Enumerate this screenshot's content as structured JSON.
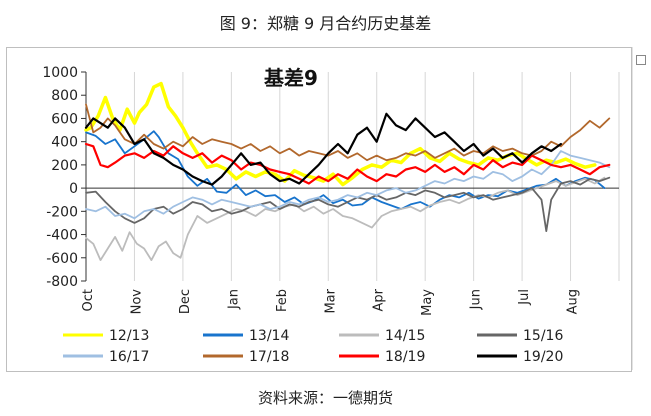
{
  "figure": {
    "title": "图 9：郑糖 9 月合约历史基差",
    "source": "资料来源：一德期货"
  },
  "chart_data": {
    "type": "line",
    "title": "基差9",
    "xlabel": "",
    "ylabel": "",
    "ylim": [
      -800,
      1000
    ],
    "yticks": [
      1000,
      800,
      600,
      400,
      200,
      0,
      -200,
      -400,
      -600,
      -800
    ],
    "x_tick_labels": [
      "Oct",
      "Nov",
      "Dec",
      "Jan",
      "Feb",
      "Mar",
      "Apr",
      "May",
      "Jun",
      "Jul",
      "Aug"
    ],
    "grid": "vertical",
    "legend_position": "bottom",
    "series": [
      {
        "name": "12/13",
        "color": "#ffff00",
        "width": 3.5,
        "x": [
          0,
          0.1,
          0.25,
          0.4,
          0.55,
          0.7,
          0.85,
          1.0,
          1.1,
          1.25,
          1.4,
          1.55,
          1.7,
          1.85,
          2.0,
          2.15,
          2.3,
          2.5,
          2.7,
          2.9,
          3.1,
          3.3,
          3.5,
          3.7,
          3.9,
          4.1,
          4.3,
          4.5,
          4.7,
          4.9,
          5.1,
          5.3,
          5.5,
          5.7,
          5.9,
          6.1,
          6.3,
          6.5,
          6.7,
          6.9,
          7.1,
          7.3,
          7.5,
          7.7,
          7.9,
          8.1,
          8.3,
          8.5,
          8.7,
          8.9,
          9.1,
          9.3,
          9.5,
          9.7,
          9.9,
          10.1,
          10.3,
          10.5
        ],
        "y": [
          500,
          520,
          620,
          780,
          600,
          500,
          680,
          560,
          650,
          720,
          870,
          900,
          700,
          620,
          520,
          400,
          300,
          180,
          200,
          160,
          80,
          140,
          100,
          140,
          120,
          60,
          150,
          110,
          90,
          60,
          120,
          30,
          90,
          160,
          200,
          180,
          240,
          220,
          300,
          340,
          260,
          230,
          300,
          250,
          220,
          200,
          260,
          240,
          280,
          300,
          250,
          200,
          240,
          220,
          250,
          210,
          180,
          200
        ]
      },
      {
        "name": "13/14",
        "color": "#1874cd",
        "width": 1.8,
        "x": [
          0,
          0.2,
          0.4,
          0.6,
          0.8,
          1.0,
          1.2,
          1.4,
          1.5,
          1.7,
          1.9,
          2.1,
          2.3,
          2.5,
          2.7,
          2.9,
          3.1,
          3.3,
          3.5,
          3.7,
          3.9,
          4.1,
          4.3,
          4.5,
          4.7,
          4.9,
          5.1,
          5.3,
          5.5,
          5.7,
          5.9,
          6.1,
          6.3,
          6.5,
          6.7,
          6.9,
          7.1,
          7.3,
          7.5,
          7.7,
          7.9,
          8.1,
          8.3,
          8.5,
          8.7,
          8.9,
          9.1,
          9.3,
          9.5,
          9.7,
          9.9,
          10.1,
          10.3,
          10.5,
          10.7
        ],
        "y": [
          480,
          450,
          380,
          420,
          300,
          360,
          420,
          490,
          440,
          300,
          250,
          100,
          20,
          80,
          -30,
          -40,
          30,
          -60,
          -20,
          -70,
          -60,
          -120,
          -80,
          -140,
          -110,
          -60,
          -130,
          -100,
          -150,
          -140,
          -80,
          -120,
          -150,
          -180,
          -140,
          -120,
          -160,
          -100,
          -60,
          -80,
          -40,
          -90,
          -60,
          -70,
          -20,
          -40,
          -10,
          20,
          30,
          80,
          20,
          60,
          90,
          70,
          0
        ]
      },
      {
        "name": "14/15",
        "color": "#bcbcbc",
        "width": 1.8,
        "x": [
          0,
          0.15,
          0.3,
          0.45,
          0.6,
          0.75,
          0.9,
          1.05,
          1.2,
          1.35,
          1.5,
          1.65,
          1.8,
          1.95,
          2.1,
          2.3,
          2.5,
          2.7,
          2.9,
          3.1,
          3.3,
          3.5,
          3.7,
          3.9,
          4.1,
          4.3,
          4.5,
          4.7,
          4.9,
          5.1,
          5.3,
          5.5,
          5.7,
          5.9,
          6.1,
          6.3,
          6.5,
          6.7,
          6.9,
          7.1,
          7.3,
          7.5,
          7.7,
          7.9,
          8.1,
          8.3,
          8.5,
          8.7,
          8.9,
          9.1,
          9.3,
          9.5,
          9.7,
          9.9,
          10.1,
          10.3,
          10.5,
          10.7
        ],
        "y": [
          -430,
          -480,
          -620,
          -520,
          -420,
          -540,
          -380,
          -480,
          -520,
          -620,
          -500,
          -460,
          -560,
          -600,
          -400,
          -240,
          -300,
          -260,
          -220,
          -180,
          -200,
          -240,
          -180,
          -200,
          -160,
          -140,
          -200,
          -160,
          -220,
          -180,
          -240,
          -260,
          -300,
          -340,
          -240,
          -200,
          -180,
          -160,
          -200,
          -150,
          -120,
          -100,
          -130,
          -90,
          -60,
          -80,
          -40,
          -20,
          -60,
          -30,
          0,
          30,
          60,
          20,
          50,
          80,
          40,
          90
        ]
      },
      {
        "name": "15/16",
        "color": "#666666",
        "width": 1.8,
        "x": [
          0,
          0.2,
          0.4,
          0.6,
          0.8,
          1.0,
          1.2,
          1.4,
          1.6,
          1.8,
          2.0,
          2.2,
          2.4,
          2.6,
          2.8,
          3.0,
          3.2,
          3.4,
          3.6,
          3.8,
          4.0,
          4.2,
          4.4,
          4.6,
          4.8,
          5.0,
          5.2,
          5.4,
          5.6,
          5.8,
          6.0,
          6.2,
          6.4,
          6.6,
          6.8,
          7.0,
          7.2,
          7.4,
          7.6,
          7.8,
          8.0,
          8.2,
          8.4,
          8.6,
          8.8,
          9.0,
          9.2,
          9.4,
          9.5,
          9.6,
          9.8,
          10.0,
          10.2,
          10.4,
          10.6,
          10.8
        ],
        "y": [
          -40,
          -30,
          -120,
          -200,
          -260,
          -300,
          -260,
          -180,
          -160,
          -220,
          -180,
          -120,
          -140,
          -200,
          -180,
          -220,
          -200,
          -160,
          -140,
          -120,
          -180,
          -140,
          -160,
          -120,
          -100,
          -140,
          -160,
          -120,
          -80,
          -100,
          -60,
          -100,
          -80,
          -40,
          -60,
          -20,
          -40,
          -80,
          -60,
          -40,
          -80,
          -60,
          -100,
          -80,
          -60,
          -40,
          0,
          -100,
          -370,
          -100,
          40,
          60,
          30,
          80,
          60,
          90
        ]
      },
      {
        "name": "16/17",
        "color": "#9fbfe2",
        "width": 1.8,
        "x": [
          0,
          0.2,
          0.4,
          0.6,
          0.8,
          1.0,
          1.2,
          1.4,
          1.6,
          1.8,
          2.0,
          2.2,
          2.4,
          2.6,
          2.8,
          3.0,
          3.2,
          3.4,
          3.6,
          3.8,
          4.0,
          4.2,
          4.4,
          4.6,
          4.8,
          5.0,
          5.2,
          5.4,
          5.6,
          5.8,
          6.0,
          6.2,
          6.4,
          6.6,
          6.8,
          7.0,
          7.2,
          7.4,
          7.6,
          7.8,
          8.0,
          8.2,
          8.4,
          8.6,
          8.8,
          9.0,
          9.2,
          9.4,
          9.6,
          9.8,
          10.0,
          10.2,
          10.4,
          10.6,
          10.8
        ],
        "y": [
          -180,
          -200,
          -160,
          -240,
          -220,
          -260,
          -200,
          -180,
          -220,
          -160,
          -120,
          -80,
          -100,
          -140,
          -100,
          -120,
          -140,
          -160,
          -140,
          -180,
          -160,
          -120,
          -140,
          -100,
          -80,
          -120,
          -100,
          -60,
          -80,
          -40,
          -60,
          -20,
          0,
          -40,
          -20,
          20,
          60,
          40,
          80,
          60,
          100,
          80,
          140,
          120,
          60,
          100,
          160,
          120,
          200,
          320,
          280,
          260,
          240,
          220,
          180
        ]
      },
      {
        "name": "17/18",
        "color": "#b2682c",
        "width": 1.8,
        "x": [
          0,
          0.15,
          0.3,
          0.45,
          0.6,
          0.8,
          1.0,
          1.2,
          1.4,
          1.6,
          1.8,
          2.0,
          2.2,
          2.4,
          2.6,
          2.8,
          3.0,
          3.2,
          3.4,
          3.6,
          3.8,
          4.0,
          4.2,
          4.4,
          4.6,
          4.8,
          5.0,
          5.2,
          5.4,
          5.6,
          5.8,
          6.0,
          6.2,
          6.4,
          6.6,
          6.8,
          7.0,
          7.2,
          7.4,
          7.6,
          7.8,
          8.0,
          8.2,
          8.4,
          8.6,
          8.8,
          9.0,
          9.2,
          9.4,
          9.6,
          9.8,
          10.0,
          10.2,
          10.4,
          10.6,
          10.8
        ],
        "y": [
          720,
          480,
          520,
          600,
          540,
          420,
          380,
          460,
          380,
          340,
          400,
          360,
          440,
          380,
          420,
          400,
          380,
          340,
          380,
          320,
          360,
          300,
          340,
          280,
          320,
          300,
          280,
          320,
          260,
          300,
          240,
          280,
          240,
          260,
          300,
          280,
          320,
          260,
          300,
          340,
          280,
          320,
          300,
          360,
          320,
          340,
          300,
          280,
          320,
          400,
          360,
          440,
          500,
          580,
          520,
          600
        ]
      },
      {
        "name": "18/19",
        "color": "#ff0000",
        "width": 2.2,
        "x": [
          0,
          0.15,
          0.3,
          0.45,
          0.6,
          0.8,
          1.0,
          1.2,
          1.4,
          1.6,
          1.8,
          2.0,
          2.2,
          2.4,
          2.6,
          2.8,
          3.0,
          3.2,
          3.4,
          3.6,
          3.8,
          4.0,
          4.2,
          4.4,
          4.6,
          4.8,
          5.0,
          5.2,
          5.4,
          5.6,
          5.8,
          6.0,
          6.2,
          6.4,
          6.6,
          6.8,
          7.0,
          7.2,
          7.4,
          7.6,
          7.8,
          8.0,
          8.2,
          8.4,
          8.6,
          8.8,
          9.0,
          9.2,
          9.4,
          9.6,
          9.8,
          10.0,
          10.2,
          10.4,
          10.6,
          10.8
        ],
        "y": [
          380,
          360,
          200,
          180,
          220,
          280,
          300,
          260,
          320,
          280,
          360,
          300,
          260,
          300,
          220,
          280,
          240,
          160,
          220,
          200,
          160,
          140,
          120,
          80,
          40,
          100,
          60,
          120,
          80,
          160,
          100,
          60,
          120,
          100,
          160,
          180,
          140,
          200,
          140,
          180,
          120,
          200,
          160,
          240,
          180,
          220,
          200,
          280,
          240,
          200,
          180,
          200,
          160,
          120,
          180,
          200
        ]
      },
      {
        "name": "19/20",
        "color": "#000000",
        "width": 2.2,
        "x": [
          0,
          0.15,
          0.3,
          0.45,
          0.6,
          0.8,
          1.0,
          1.2,
          1.4,
          1.6,
          1.8,
          2.0,
          2.2,
          2.4,
          2.6,
          2.8,
          3.0,
          3.2,
          3.4,
          3.6,
          3.8,
          4.0,
          4.2,
          4.4,
          4.6,
          4.8,
          5.0,
          5.2,
          5.4,
          5.6,
          5.8,
          6.0,
          6.2,
          6.4,
          6.6,
          6.8,
          7.0,
          7.2,
          7.4,
          7.6,
          7.8,
          8.0,
          8.2,
          8.4,
          8.6,
          8.8,
          9.0,
          9.2,
          9.4,
          9.6,
          9.8
        ],
        "y": [
          520,
          600,
          560,
          520,
          600,
          520,
          380,
          420,
          300,
          260,
          200,
          160,
          100,
          60,
          30,
          100,
          200,
          300,
          200,
          220,
          120,
          60,
          80,
          40,
          120,
          200,
          300,
          380,
          300,
          460,
          520,
          400,
          640,
          540,
          500,
          600,
          520,
          440,
          480,
          400,
          320,
          380,
          280,
          340,
          260,
          300,
          220,
          300,
          360,
          320,
          380
        ]
      }
    ]
  }
}
